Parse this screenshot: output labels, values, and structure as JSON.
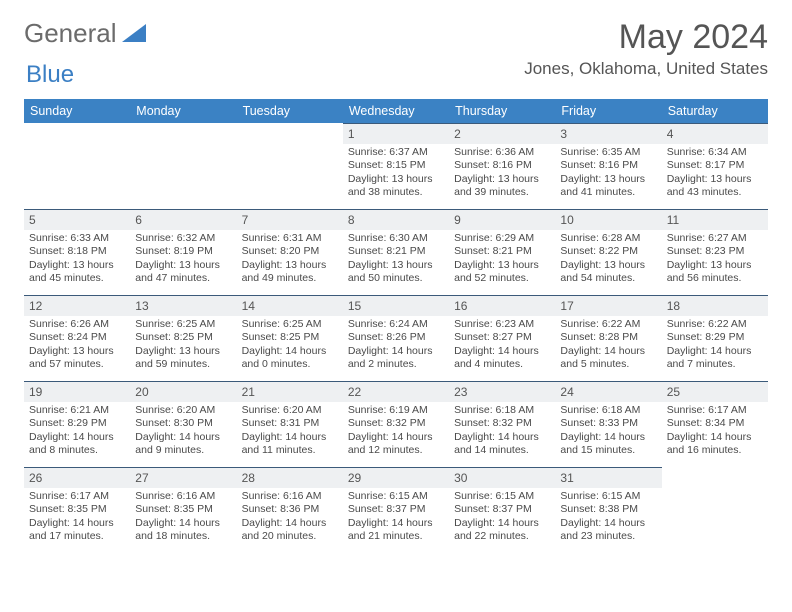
{
  "brand": {
    "part1": "General",
    "part2": "Blue"
  },
  "title": "May 2024",
  "location": "Jones, Oklahoma, United States",
  "colors": {
    "header_bg": "#3b82c4",
    "header_text": "#ffffff",
    "daynum_bg": "#eef0f2",
    "border_top": "#3b5a7a",
    "text": "#4a4a4a",
    "title_color": "#555555",
    "brand_gray": "#6b6b6b",
    "brand_blue": "#3b7fc4"
  },
  "fonts": {
    "family": "Arial",
    "title_size": 34,
    "location_size": 17,
    "weekday_size": 12.5,
    "cell_size": 10.5,
    "daynum_size": 12
  },
  "weekdays": [
    "Sunday",
    "Monday",
    "Tuesday",
    "Wednesday",
    "Thursday",
    "Friday",
    "Saturday"
  ],
  "weeks": [
    [
      null,
      null,
      null,
      {
        "n": "1",
        "sunrise": "6:37 AM",
        "sunset": "8:15 PM",
        "dlh": "13",
        "dlm": "38"
      },
      {
        "n": "2",
        "sunrise": "6:36 AM",
        "sunset": "8:16 PM",
        "dlh": "13",
        "dlm": "39"
      },
      {
        "n": "3",
        "sunrise": "6:35 AM",
        "sunset": "8:16 PM",
        "dlh": "13",
        "dlm": "41"
      },
      {
        "n": "4",
        "sunrise": "6:34 AM",
        "sunset": "8:17 PM",
        "dlh": "13",
        "dlm": "43"
      }
    ],
    [
      {
        "n": "5",
        "sunrise": "6:33 AM",
        "sunset": "8:18 PM",
        "dlh": "13",
        "dlm": "45"
      },
      {
        "n": "6",
        "sunrise": "6:32 AM",
        "sunset": "8:19 PM",
        "dlh": "13",
        "dlm": "47"
      },
      {
        "n": "7",
        "sunrise": "6:31 AM",
        "sunset": "8:20 PM",
        "dlh": "13",
        "dlm": "49"
      },
      {
        "n": "8",
        "sunrise": "6:30 AM",
        "sunset": "8:21 PM",
        "dlh": "13",
        "dlm": "50"
      },
      {
        "n": "9",
        "sunrise": "6:29 AM",
        "sunset": "8:21 PM",
        "dlh": "13",
        "dlm": "52"
      },
      {
        "n": "10",
        "sunrise": "6:28 AM",
        "sunset": "8:22 PM",
        "dlh": "13",
        "dlm": "54"
      },
      {
        "n": "11",
        "sunrise": "6:27 AM",
        "sunset": "8:23 PM",
        "dlh": "13",
        "dlm": "56"
      }
    ],
    [
      {
        "n": "12",
        "sunrise": "6:26 AM",
        "sunset": "8:24 PM",
        "dlh": "13",
        "dlm": "57"
      },
      {
        "n": "13",
        "sunrise": "6:25 AM",
        "sunset": "8:25 PM",
        "dlh": "13",
        "dlm": "59"
      },
      {
        "n": "14",
        "sunrise": "6:25 AM",
        "sunset": "8:25 PM",
        "dlh": "14",
        "dlm": "0"
      },
      {
        "n": "15",
        "sunrise": "6:24 AM",
        "sunset": "8:26 PM",
        "dlh": "14",
        "dlm": "2"
      },
      {
        "n": "16",
        "sunrise": "6:23 AM",
        "sunset": "8:27 PM",
        "dlh": "14",
        "dlm": "4"
      },
      {
        "n": "17",
        "sunrise": "6:22 AM",
        "sunset": "8:28 PM",
        "dlh": "14",
        "dlm": "5"
      },
      {
        "n": "18",
        "sunrise": "6:22 AM",
        "sunset": "8:29 PM",
        "dlh": "14",
        "dlm": "7"
      }
    ],
    [
      {
        "n": "19",
        "sunrise": "6:21 AM",
        "sunset": "8:29 PM",
        "dlh": "14",
        "dlm": "8"
      },
      {
        "n": "20",
        "sunrise": "6:20 AM",
        "sunset": "8:30 PM",
        "dlh": "14",
        "dlm": "9"
      },
      {
        "n": "21",
        "sunrise": "6:20 AM",
        "sunset": "8:31 PM",
        "dlh": "14",
        "dlm": "11"
      },
      {
        "n": "22",
        "sunrise": "6:19 AM",
        "sunset": "8:32 PM",
        "dlh": "14",
        "dlm": "12"
      },
      {
        "n": "23",
        "sunrise": "6:18 AM",
        "sunset": "8:32 PM",
        "dlh": "14",
        "dlm": "14"
      },
      {
        "n": "24",
        "sunrise": "6:18 AM",
        "sunset": "8:33 PM",
        "dlh": "14",
        "dlm": "15"
      },
      {
        "n": "25",
        "sunrise": "6:17 AM",
        "sunset": "8:34 PM",
        "dlh": "14",
        "dlm": "16"
      }
    ],
    [
      {
        "n": "26",
        "sunrise": "6:17 AM",
        "sunset": "8:35 PM",
        "dlh": "14",
        "dlm": "17"
      },
      {
        "n": "27",
        "sunrise": "6:16 AM",
        "sunset": "8:35 PM",
        "dlh": "14",
        "dlm": "18"
      },
      {
        "n": "28",
        "sunrise": "6:16 AM",
        "sunset": "8:36 PM",
        "dlh": "14",
        "dlm": "20"
      },
      {
        "n": "29",
        "sunrise": "6:15 AM",
        "sunset": "8:37 PM",
        "dlh": "14",
        "dlm": "21"
      },
      {
        "n": "30",
        "sunrise": "6:15 AM",
        "sunset": "8:37 PM",
        "dlh": "14",
        "dlm": "22"
      },
      {
        "n": "31",
        "sunrise": "6:15 AM",
        "sunset": "8:38 PM",
        "dlh": "14",
        "dlm": "23"
      },
      null
    ]
  ],
  "labels": {
    "sunrise": "Sunrise:",
    "sunset": "Sunset:",
    "daylight_prefix": "Daylight:",
    "hours_word": "hours",
    "and_word": "and",
    "minutes_word": "minutes."
  }
}
